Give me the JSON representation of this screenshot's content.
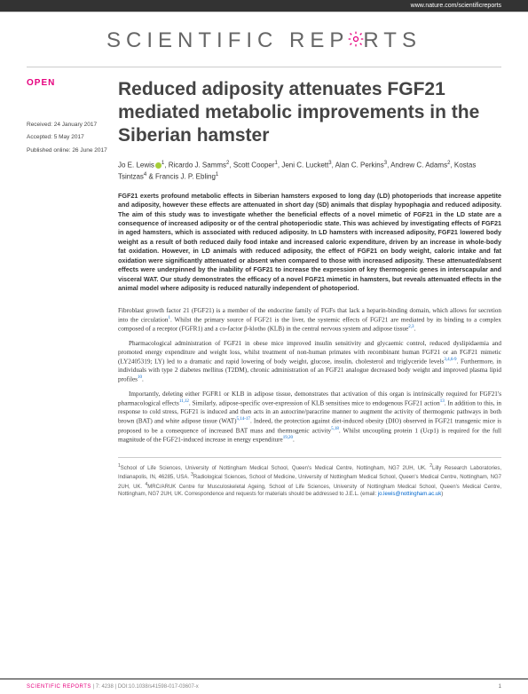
{
  "topbar": {
    "url": "www.nature.com/scientificreports"
  },
  "journal": {
    "name_part1": "SCIENTIFIC ",
    "name_part2": "REP",
    "name_part3": "RTS"
  },
  "sidebar": {
    "open": "OPEN",
    "received": "Received: 24 January 2017",
    "accepted": "Accepted: 5 May 2017",
    "published": "Published online: 26 June 2017"
  },
  "article": {
    "title": "Reduced adiposity attenuates FGF21 mediated metabolic improvements in the Siberian hamster",
    "authors_html": "Jo E. Lewis<sup>1</sup>, Ricardo J. Samms<sup>2</sup>, Scott Cooper<sup>1</sup>, Jeni C. Luckett<sup>3</sup>, Alan C. Perkins<sup>3</sup>, Andrew C. Adams<sup>2</sup>, Kostas Tsintzas<sup>4</sup> & Francis J. P. Ebling<sup>1</sup>",
    "abstract": "FGF21 exerts profound metabolic effects in Siberian hamsters exposed to long day (LD) photoperiods that increase appetite and adiposity, however these effects are attenuated in short day (SD) animals that display hypophagia and reduced adiposity. The aim of this study was to investigate whether the beneficial effects of a novel mimetic of FGF21 in the LD state are a consequence of increased adiposity or of the central photoperiodic state. This was achieved by investigating effects of FGF21 in aged hamsters, which is associated with reduced adiposity. In LD hamsters with increased adiposity, FGF21 lowered body weight as a result of both reduced daily food intake and increased caloric expenditure, driven by an increase in whole-body fat oxidation. However, in LD animals with reduced adiposity, the effect of FGF21 on body weight, caloric intake and fat oxidation were significantly attenuated or absent when compared to those with increased adiposity. These attenuated/absent effects were underpinned by the inability of FGF21 to increase the expression of key thermogenic genes in interscapular and visceral WAT. Our study demonstrates the efficacy of a novel FGF21 mimetic in hamsters, but reveals attenuated effects in the animal model where adiposity is reduced naturally independent of photoperiod.",
    "para1": "Fibroblast growth factor 21 (FGF21) is a member of the endocrine family of FGFs that lack a heparin-binding domain, which allows for secretion into the circulation<sup>1</sup>. Whilst the primary source of FGF21 is the liver, the systemic effects of FGF21 are mediated by its binding to a complex composed of a receptor (FGFR1) and a co-factor β-klotho (KLB) in the central nervous system and adipose tissue<sup>2,3</sup>.",
    "para2": "Pharmacological administration of FGF21 in obese mice improved insulin sensitivity and glycaemic control, reduced dyslipidaemia and promoted energy expenditure and weight loss, whilst treatment of non-human primates with recombinant human FGF21 or an FGF21 mimetic (LY2405319; LY) led to a dramatic and rapid lowering of body weight, glucose, insulin, cholesterol and triglyceride levels<sup>3,4,6-9</sup>. Furthermore, in individuals with type 2 diabetes mellitus (T2DM), chronic administration of an FGF21 analogue decreased body weight and improved plasma lipid profiles<sup>10</sup>.",
    "para3": "Importantly, deleting either FGFR1 or KLB in adipose tissue, demonstrates that activation of this organ is intrinsically required for FGF21's pharmacological effects<sup>11,12</sup>. Similarly, adipose-specific over-expression of KLB sensitises mice to endogenous FGF21 action<sup>13</sup>. In addition to this, in response to cold stress, FGF21 is induced and then acts in an autocrine/paracrine manner to augment the activity of thermogenic pathways in both brown (BAT) and white adipose tissue (WAT)<sup>5,14-17</sup>. Indeed, the protection against diet-induced obesity (DIO) observed in FGF21 transgenic mice is proposed to be a consequence of increased BAT mass and thermogenic activity<sup>5,18</sup>. Whilst uncoupling protein 1 (Ucp1) is required for the full magnitude of the FGF21-induced increase in energy expenditure<sup>19,20</sup>.",
    "affiliations": "<sup>1</sup>School of Life Sciences, University of Nottingham Medical School, Queen's Medical Centre, Nottingham, NG7 2UH, UK. <sup>2</sup>Lilly Research Laboratories, Indianapolis, IN, 46285, USA. <sup>3</sup>Radiological Sciences, School of Medicine, University of Nottingham Medical School, Queen's Medical Centre, Nottingham, NG7 2UH, UK. <sup>4</sup>MRC/ARUK Centre for Musculoskeletal Ageing, School of Life Sciences, University of Nottingham Medical School, Queen's Medical Centre, Nottingham, NG7 2UH, UK. Correspondence and requests for materials should be addressed to J.E.L. (email: ",
    "email": "jo.lewis@nottingham.ac.uk",
    "aff_close": ")"
  },
  "footer": {
    "journal": "SCIENTIFIC REPORTS",
    "citation": " | 7: 4238 | DOI:10.1038/s41598-017-03607-x",
    "page": "1"
  },
  "colors": {
    "accent": "#e6007e",
    "gear": "#e6007e"
  }
}
